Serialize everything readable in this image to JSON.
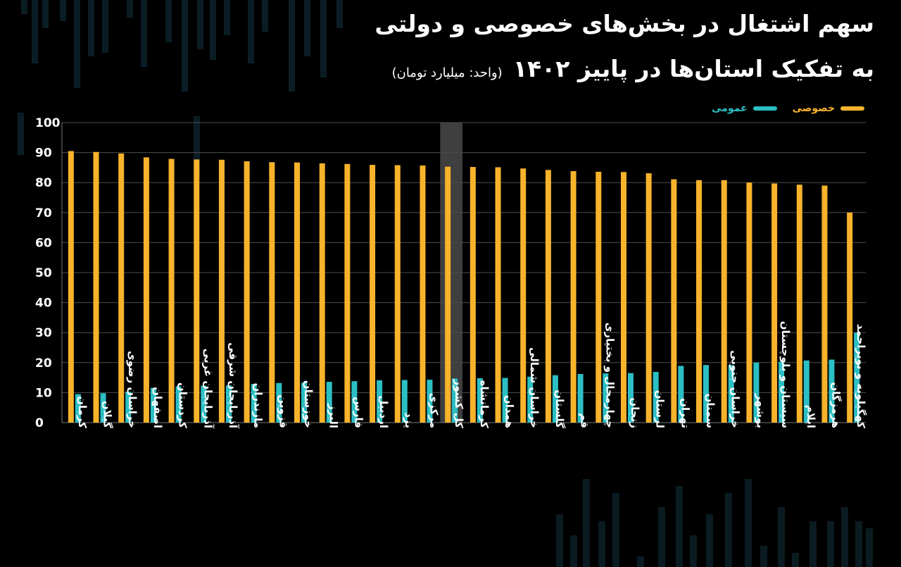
{
  "title": {
    "line1": "سهم اشتغال در بخش‌های خصوصی و دولتی",
    "line2": "به تفکیک استان‌ها در پاییز ۱۴۰۲",
    "unit": "(واحد: میلیارد تومان)"
  },
  "colors": {
    "private": "#F7B32B",
    "public": "#2BBFC4",
    "highlight": "#3A3A3A",
    "grid": "#555555",
    "text": "#FFFFFF"
  },
  "chart_data": {
    "type": "bar",
    "legend_position": "top-right",
    "grid": true,
    "ylim": [
      0,
      100
    ],
    "yticks": [
      "0",
      "10",
      "20",
      "30",
      "40",
      "50",
      "60",
      "70",
      "80",
      "90",
      "100"
    ],
    "highlighted_category": "کل کشور",
    "categories": [
      "کرمان",
      "گیلان",
      "خراسان رضوی",
      "اصفهان",
      "کردستان",
      "آذربایجان غربی",
      "آذربایجان شرقی",
      "مازندران",
      "قزوین",
      "خوزستان",
      "البرز",
      "فارس",
      "اردبیل",
      "یزد",
      "مرکزی",
      "کل کشور",
      "کرمانشاه",
      "همدان",
      "خراسان شمالی",
      "گلستان",
      "قم",
      "چهارمحال و بختیاری",
      "زنجان",
      "لرستان",
      "تهران",
      "سمنان",
      "خراسان جنوبی",
      "بوشهر",
      "سیستان و بلوچستان",
      "ایلام",
      "هرمزگان",
      "کهگیلویه و بویراحمد"
    ],
    "series": [
      {
        "name": "خصوصی",
        "color": "#F7B32B",
        "values": [
          90.5,
          90.2,
          89.7,
          88.4,
          87.9,
          87.7,
          87.6,
          87.1,
          86.8,
          86.7,
          86.4,
          86.2,
          85.9,
          85.8,
          85.7,
          85.3,
          85.2,
          85.1,
          84.7,
          84.2,
          83.8,
          83.6,
          83.5,
          83.1,
          81.1,
          80.8,
          80.8,
          80.0,
          79.7,
          79.3,
          79.0,
          70.0
        ]
      },
      {
        "name": "عمومی",
        "color": "#2BBFC4",
        "values": [
          9.5,
          9.8,
          10.3,
          11.6,
          12.1,
          12.3,
          12.4,
          12.9,
          13.2,
          13.3,
          13.6,
          13.8,
          14.1,
          14.2,
          14.3,
          14.7,
          14.8,
          14.9,
          15.3,
          15.8,
          16.2,
          16.4,
          16.5,
          16.9,
          18.9,
          19.2,
          19.2,
          20.0,
          20.3,
          20.7,
          21.0,
          30.0
        ]
      }
    ]
  }
}
